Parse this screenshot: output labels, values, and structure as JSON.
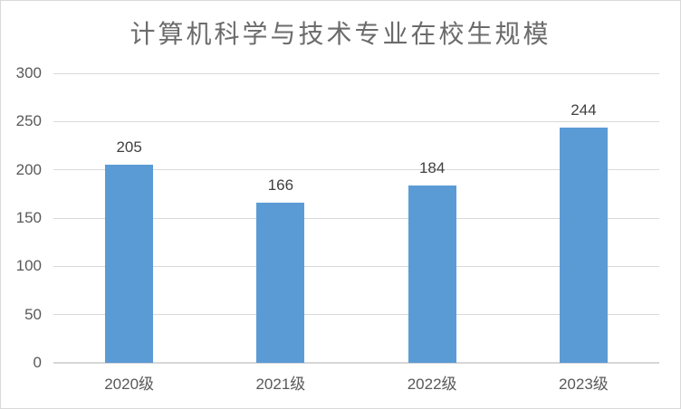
{
  "chart_data": {
    "type": "bar",
    "title": "计算机科学与技术专业在校生规模",
    "categories": [
      "2020级",
      "2021级",
      "2022级",
      "2023级"
    ],
    "values": [
      205,
      166,
      184,
      244
    ],
    "data_labels": [
      "205",
      "166",
      "184",
      "244"
    ],
    "xlabel": "",
    "ylabel": "",
    "ylim": [
      0,
      300
    ],
    "yticks": [
      0,
      50,
      100,
      150,
      200,
      250,
      300
    ],
    "grid": "horizontal",
    "legend": "none",
    "data_labels_shown": true
  },
  "colors": {
    "bar": "#5B9BD5",
    "gridline": "#D9D9D9",
    "axis_line": "#D6D6D6",
    "title_text": "#6B6B6B",
    "axis_text": "#595959",
    "data_label_text": "#404040",
    "border": "#D9D9D9",
    "background": "#FFFFFF"
  }
}
